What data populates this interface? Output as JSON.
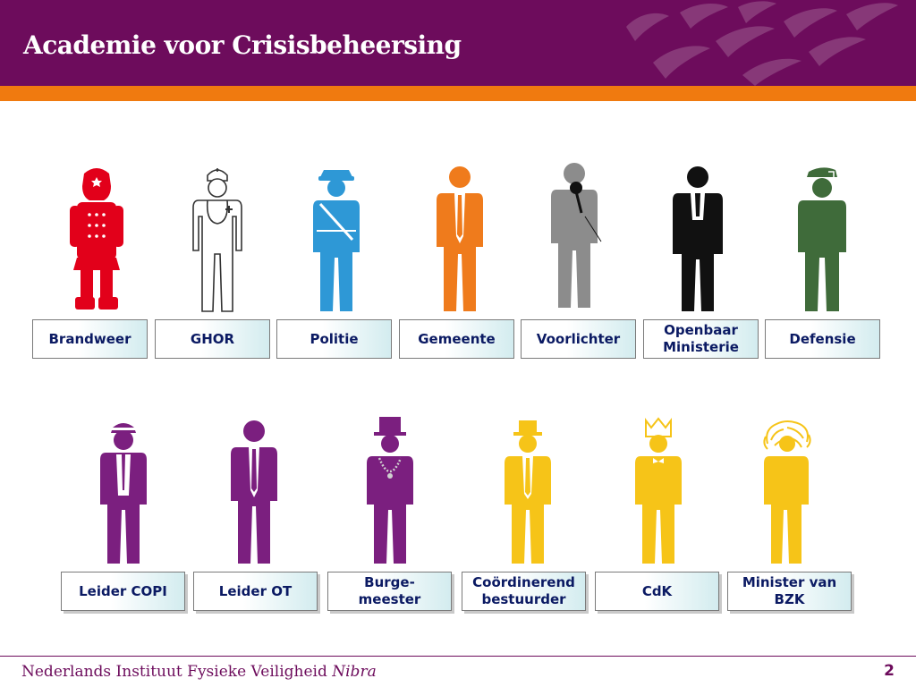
{
  "header": {
    "title": "Academie voor Crisisbeheersing"
  },
  "colors": {
    "brand_purple": "#6d0c5c",
    "accent_orange": "#f07a0f",
    "label_text": "#0b1a63",
    "fire_red": "#e2001a",
    "police_blue": "#2e98d6",
    "municipal_orange": "#ef7b1c",
    "press_gray": "#8c8c8c",
    "defense_green": "#3f6b3a",
    "leader_purple": "#7b1f7f",
    "authority_yellow": "#f6c418"
  },
  "row1": [
    {
      "label": "Brandweer",
      "icon": "firefighter-icon"
    },
    {
      "label": "GHOR",
      "icon": "nurse-icon"
    },
    {
      "label": "Politie",
      "icon": "police-officer-icon"
    },
    {
      "label": "Gemeente",
      "icon": "municipal-official-icon"
    },
    {
      "label": "Voorlichter",
      "icon": "spokesperson-icon"
    },
    {
      "label_line1": "Openbaar",
      "label_line2": "Ministerie",
      "icon": "prosecutor-icon"
    },
    {
      "label": "Defensie",
      "icon": "soldier-icon"
    }
  ],
  "row2": [
    {
      "label": "Leider COPI",
      "icon": "copi-leader-icon"
    },
    {
      "label": "Leider OT",
      "icon": "ot-leader-icon"
    },
    {
      "label_line1": "Burge-",
      "label_line2": "meester",
      "icon": "mayor-icon"
    },
    {
      "label_line1": "Coördinerend",
      "label_line2": "bestuurder",
      "icon": "coordinating-administrator-icon"
    },
    {
      "label": "CdK",
      "icon": "kings-commissioner-icon"
    },
    {
      "label_line1": "Minister van",
      "label_line2": "BZK",
      "icon": "minister-icon"
    }
  ],
  "footer": {
    "institute": "Nederlands Instituut Fysieke Veiligheid",
    "brand": "Nibra",
    "page_number": "2"
  }
}
